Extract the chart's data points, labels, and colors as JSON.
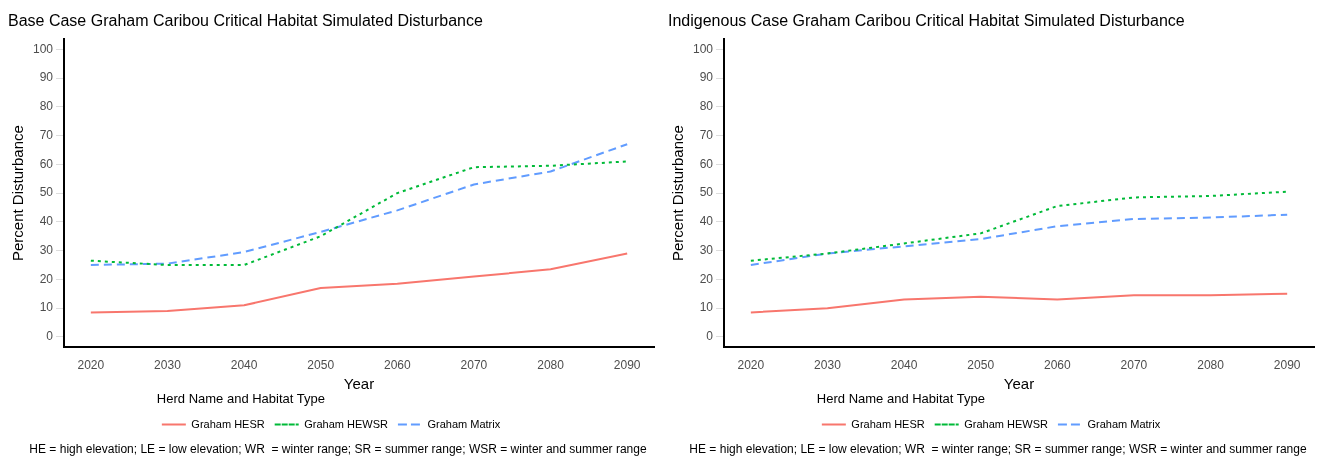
{
  "chart_data": [
    {
      "type": "line",
      "title": "Base Case Graham Caribou Critical Habitat Simulated Disturbance",
      "xlabel": "Year",
      "ylabel": "Percent Disturbance",
      "legend_title": "Herd Name and Habitat Type",
      "legend": "bottom",
      "grid": false,
      "marker": "none",
      "x": [
        2020,
        2030,
        2040,
        2050,
        2060,
        2070,
        2080,
        2090
      ],
      "series": [
        {
          "name": "Graham HESR",
          "color": "#f8766d",
          "line_style": "solid",
          "values": [
            8.5,
            9,
            11,
            17,
            18.5,
            21,
            23.5,
            29
          ]
        },
        {
          "name": "Graham HEWSR",
          "color": "#00ba38",
          "line_style": "dotted",
          "values": [
            26.5,
            25,
            25,
            35,
            50,
            59,
            59.5,
            61
          ]
        },
        {
          "name": "Graham Matrix",
          "color": "#619cff",
          "line_style": "dashed",
          "values": [
            25,
            25.5,
            29.5,
            36.5,
            44,
            53,
            57.5,
            67
          ]
        }
      ],
      "xlim": [
        2016.5,
        2093.5
      ],
      "xticks": [
        2020,
        2030,
        2040,
        2050,
        2060,
        2070,
        2080,
        2090
      ],
      "ylim": [
        -3.5,
        103.5
      ],
      "yticks": [
        0,
        10,
        20,
        30,
        40,
        50,
        60,
        70,
        80,
        90,
        100
      ],
      "annotations": [
        "HE = high elevation; LE = low elevation; WR  = winter range; SR = summer range; WSR = winter and summer range"
      ]
    },
    {
      "type": "line",
      "title": "Indigenous Case Graham Caribou Critical Habitat Simulated Disturbance",
      "xlabel": "Year",
      "ylabel": "Percent Disturbance",
      "legend_title": "Herd Name and Habitat Type",
      "legend": "bottom",
      "grid": false,
      "marker": "none",
      "x": [
        2020,
        2030,
        2040,
        2050,
        2060,
        2070,
        2080,
        2090
      ],
      "series": [
        {
          "name": "Graham HESR",
          "color": "#f8766d",
          "line_style": "solid",
          "values": [
            8.5,
            10,
            13,
            14,
            13,
            14.5,
            14.5,
            15
          ]
        },
        {
          "name": "Graham HEWSR",
          "color": "#00ba38",
          "line_style": "dotted",
          "values": [
            26.5,
            29,
            32.5,
            36,
            45.5,
            48.5,
            49,
            50.5
          ]
        },
        {
          "name": "Graham Matrix",
          "color": "#619cff",
          "line_style": "dashed",
          "values": [
            25,
            29,
            31.5,
            34,
            38.5,
            41,
            41.5,
            42.5
          ]
        }
      ],
      "xlim": [
        2016.5,
        2093.5
      ],
      "xticks": [
        2020,
        2030,
        2040,
        2050,
        2060,
        2070,
        2080,
        2090
      ],
      "ylim": [
        -3.5,
        103.5
      ],
      "yticks": [
        0,
        10,
        20,
        30,
        40,
        50,
        60,
        70,
        80,
        90,
        100
      ],
      "annotations": [
        "HE = high elevation; LE = low elevation; WR  = winter range; SR = summer range; WSR = winter and summer range"
      ]
    }
  ]
}
